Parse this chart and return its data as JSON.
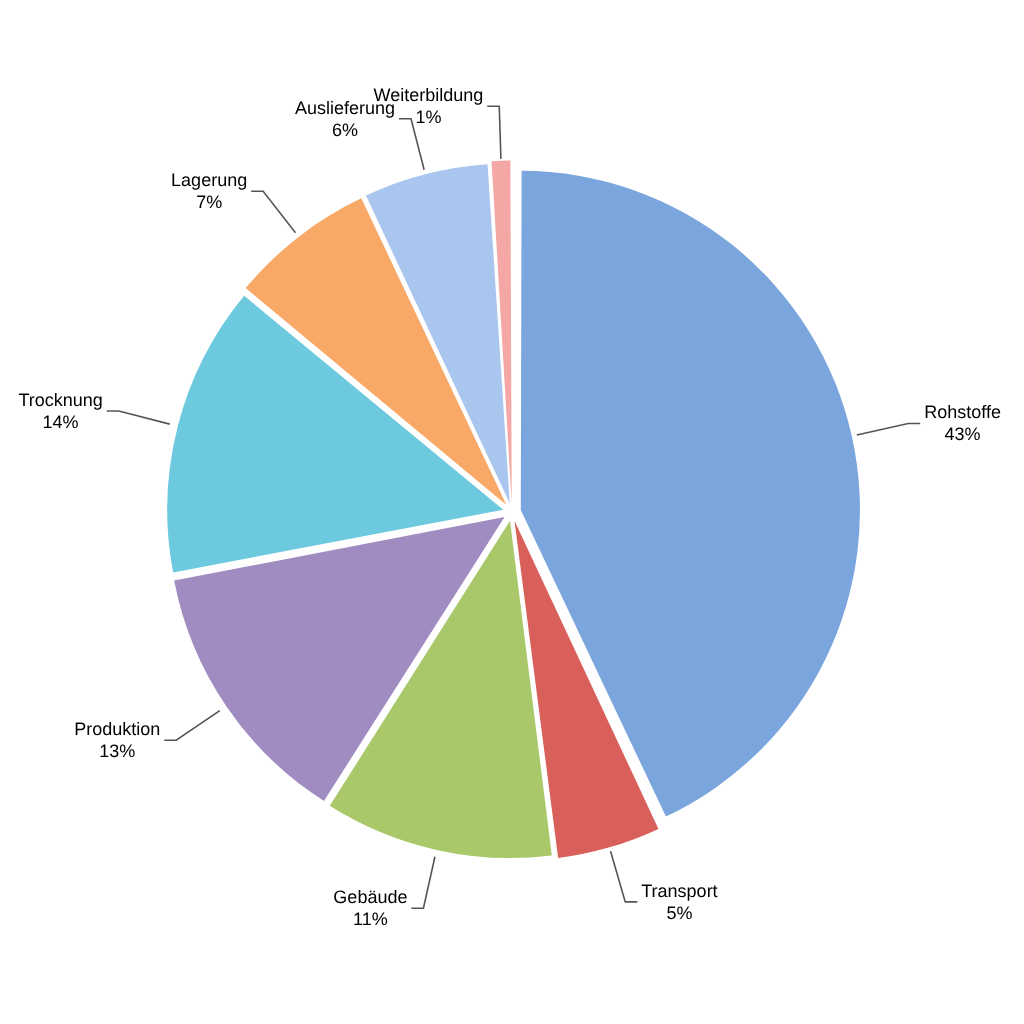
{
  "chart_data": {
    "type": "pie",
    "categories": [
      "Rohstoffe",
      "Transport",
      "Gebäude",
      "Produktion",
      "Trocknung",
      "Lagerung",
      "Auslieferung",
      "Weiterbildung"
    ],
    "values": [
      43,
      5,
      11,
      13,
      14,
      7,
      6,
      1
    ],
    "colors": [
      "#7aa5dd",
      "#d9605a",
      "#a9c86a",
      "#a08cc0",
      "#6cc9de",
      "#f8a968",
      "#a9c6ee",
      "#f4a7a4"
    ],
    "value_labels": [
      "43%",
      "5%",
      "11%",
      "13%",
      "14%",
      "7%",
      "6%",
      "1%"
    ],
    "legend": false
  }
}
